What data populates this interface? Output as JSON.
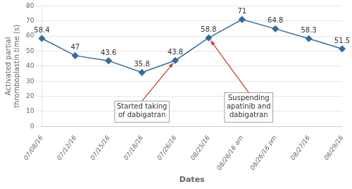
{
  "chart_data": {
    "type": "line",
    "categories": [
      "07/08/16",
      "07/12/16",
      "07/15/16",
      "07/18/16",
      "07/26/16",
      "08/25/16",
      "08/26/16 am",
      "08/26/16 pm",
      "08/27/16",
      "08/29/16"
    ],
    "values": [
      58.4,
      47,
      43.6,
      35.8,
      43.8,
      58.8,
      71,
      64.8,
      58.3,
      51.5
    ],
    "color": "#2e6da4",
    "marker": "diamond",
    "xlabel": "Dates",
    "ylabel": "Activated partial\nthromboplastin time (s)",
    "ylim": [
      0,
      80
    ],
    "yticks": [
      0,
      10,
      20,
      30,
      40,
      50,
      60,
      70,
      80
    ],
    "grid": "y",
    "data_labels": true,
    "annotations": [
      {
        "text": "Started taking\nof dabigatran",
        "x": "07/26/16",
        "color": "#c0392b"
      },
      {
        "text": "Suspending\napatinib and\ndabigatran",
        "x": "08/25/16",
        "color": "#c0392b"
      }
    ]
  }
}
